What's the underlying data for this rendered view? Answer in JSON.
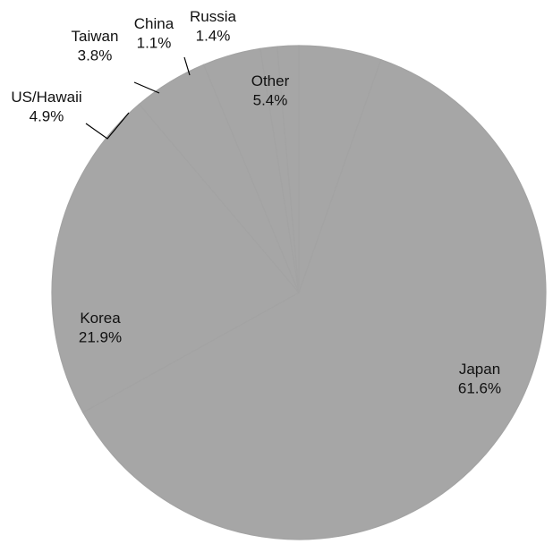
{
  "chart_data": {
    "type": "pie",
    "title": "",
    "slices": [
      {
        "label": "Other",
        "value": 5.4,
        "display": "5.4%"
      },
      {
        "label": "Japan",
        "value": 61.6,
        "display": "61.6%"
      },
      {
        "label": "Korea",
        "value": 21.9,
        "display": "21.9%"
      },
      {
        "label": "US/Hawaii",
        "value": 4.9,
        "display": "4.9%"
      },
      {
        "label": "Taiwan",
        "value": 3.8,
        "display": "3.8%"
      },
      {
        "label": "China",
        "value": 1.1,
        "display": "1.1%"
      },
      {
        "label": "Russia",
        "value": 1.4,
        "display": "1.4%"
      }
    ],
    "start": "12 o'clock",
    "direction": "clockwise",
    "slice_color": "#a6a6a6",
    "edge_color": "#999999",
    "leader_color": "#000000",
    "legend": "none"
  }
}
